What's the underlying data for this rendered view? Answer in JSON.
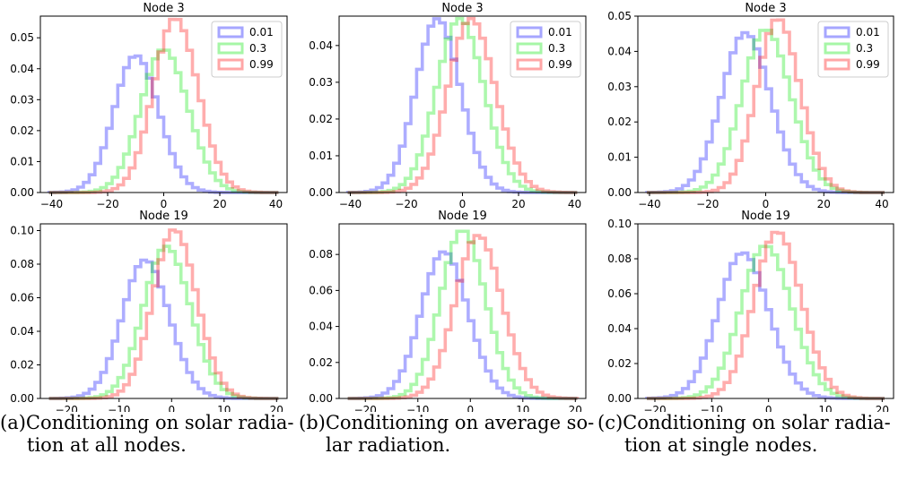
{
  "legend_labels": [
    "0.01",
    "0.3",
    "0.99"
  ],
  "colors": {
    "series_0.01": "#0000ff",
    "series_0.3": "#00e600",
    "series_0.99": "#ff0000"
  },
  "chart_data": [
    {
      "type": "histogram",
      "title": "Node 3",
      "xlim": [
        -44,
        44
      ],
      "ylim": [
        0,
        0.057
      ],
      "xticks": [
        -40,
        -20,
        0,
        20,
        40
      ],
      "yticks": [
        0,
        0.01,
        0.02,
        0.03,
        0.04,
        0.05
      ],
      "legend": "top-right",
      "series": [
        {
          "name": "0.01",
          "center": -9,
          "sigma": 8,
          "peak": 0.044
        },
        {
          "name": "0.3",
          "center": 1,
          "sigma": 8.5,
          "peak": 0.046
        },
        {
          "name": "0.99",
          "center": 5,
          "sigma": 8,
          "peak": 0.056
        }
      ]
    },
    {
      "type": "histogram",
      "title": "Node 3",
      "xlim": [
        -44,
        44
      ],
      "ylim": [
        0,
        0.048
      ],
      "xticks": [
        -40,
        -20,
        0,
        20,
        40
      ],
      "yticks": [
        0,
        0.01,
        0.02,
        0.03,
        0.04
      ],
      "legend": "top-right",
      "series": [
        {
          "name": "0.01",
          "center": -8,
          "sigma": 8,
          "peak": 0.047
        },
        {
          "name": "0.3",
          "center": 0,
          "sigma": 8.5,
          "peak": 0.047
        },
        {
          "name": "0.99",
          "center": 4,
          "sigma": 8.5,
          "peak": 0.047
        }
      ]
    },
    {
      "type": "histogram",
      "title": "Node 3",
      "xlim": [
        -44,
        44
      ],
      "ylim": [
        0,
        0.05
      ],
      "xticks": [
        -40,
        -20,
        0,
        20,
        40
      ],
      "yticks": [
        0,
        0.01,
        0.02,
        0.03,
        0.04,
        0.05
      ],
      "legend": "top-right",
      "series": [
        {
          "name": "0.01",
          "center": -6,
          "sigma": 8.5,
          "peak": 0.045
        },
        {
          "name": "0.3",
          "center": 1,
          "sigma": 8.5,
          "peak": 0.046
        },
        {
          "name": "0.99",
          "center": 5,
          "sigma": 7.5,
          "peak": 0.049
        }
      ]
    },
    {
      "type": "histogram",
      "title": "Node 19",
      "xlim": [
        -25,
        22
      ],
      "ylim": [
        0,
        0.104
      ],
      "xticks": [
        -20,
        -10,
        0,
        10,
        20
      ],
      "yticks": [
        0,
        0.02,
        0.04,
        0.06,
        0.08,
        0.1
      ],
      "series": [
        {
          "name": "0.01",
          "center": -4.5,
          "sigma": 4.5,
          "peak": 0.082
        },
        {
          "name": "0.3",
          "center": -0.5,
          "sigma": 4.5,
          "peak": 0.09
        },
        {
          "name": "0.99",
          "center": 1,
          "sigma": 4.2,
          "peak": 0.1
        }
      ]
    },
    {
      "type": "histogram",
      "title": "Node 19",
      "xlim": [
        -25,
        22
      ],
      "ylim": [
        0,
        0.097
      ],
      "xticks": [
        -20,
        -10,
        0,
        10,
        20
      ],
      "yticks": [
        0,
        0.02,
        0.04,
        0.06,
        0.08
      ],
      "series": [
        {
          "name": "0.01",
          "center": -4.5,
          "sigma": 4.5,
          "peak": 0.081
        },
        {
          "name": "0.3",
          "center": -1,
          "sigma": 4.3,
          "peak": 0.093
        },
        {
          "name": "0.99",
          "center": 2,
          "sigma": 4.5,
          "peak": 0.09
        }
      ]
    },
    {
      "type": "histogram",
      "title": "Node 19",
      "xlim": [
        -23,
        22
      ],
      "ylim": [
        0,
        0.1
      ],
      "xticks": [
        -20,
        -10,
        0,
        10,
        20
      ],
      "yticks": [
        0,
        0.02,
        0.04,
        0.06,
        0.08,
        0.1
      ],
      "series": [
        {
          "name": "0.01",
          "center": -4,
          "sigma": 4.5,
          "peak": 0.083
        },
        {
          "name": "0.3",
          "center": 0,
          "sigma": 4.5,
          "peak": 0.087
        },
        {
          "name": "0.99",
          "center": 2,
          "sigma": 4.2,
          "peak": 0.095
        }
      ]
    }
  ],
  "captions": [
    {
      "label": "(a)",
      "line1": "Conditioning on solar radia-",
      "line2": "tion at all nodes."
    },
    {
      "label": "(b)",
      "line1": "Conditioning on average so-",
      "line2": "lar radiation."
    },
    {
      "label": "(c)",
      "line1": "Conditioning on solar radia-",
      "line2": "tion at single nodes."
    }
  ]
}
